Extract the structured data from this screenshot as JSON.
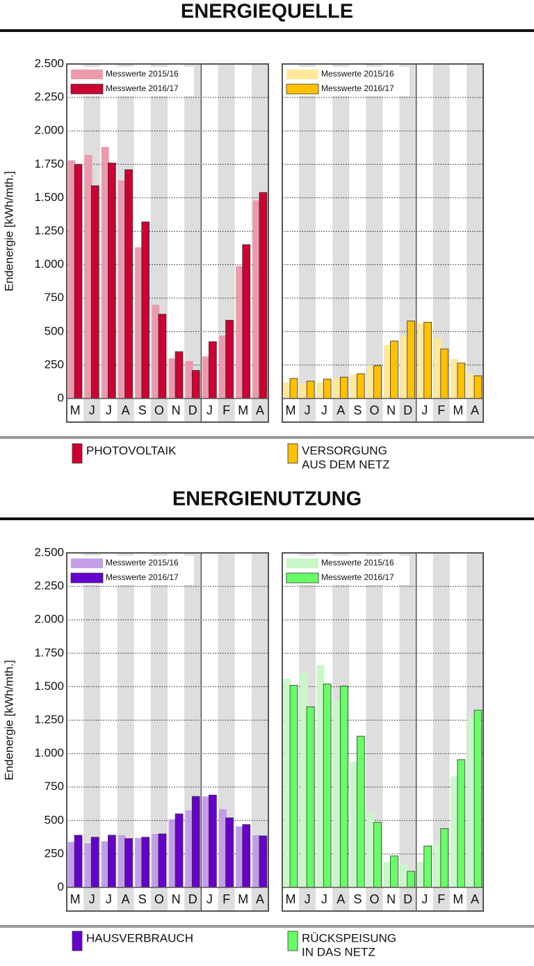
{
  "headings": [
    "ENERGIEQUELLE",
    "ENERGIENUTZUNG"
  ],
  "chart_data": [
    {
      "type": "bar",
      "ylabel": "Endenergie [kWh/mth.]",
      "caption": [
        "PHOTOVOLTAIK"
      ],
      "categories": [
        "M",
        "J",
        "J",
        "A",
        "S",
        "O",
        "N",
        "D",
        "J",
        "F",
        "M",
        "A"
      ],
      "series": [
        {
          "name": "Messwerte 2015/16",
          "color": "#eb9aac",
          "values": [
            1780,
            1820,
            1880,
            1630,
            1130,
            700,
            300,
            280,
            315,
            470,
            990,
            1480
          ]
        },
        {
          "name": "Messwerte 2016/17",
          "color": "#cc0033",
          "values": [
            1750,
            1590,
            1760,
            1710,
            1320,
            630,
            350,
            210,
            425,
            585,
            1150,
            1540
          ]
        }
      ],
      "ylim": [
        0,
        2500
      ],
      "yticks": [
        0,
        250,
        500,
        750,
        {
          "value": 1000,
          "label": "1.000"
        },
        {
          "value": 1250,
          "label": "1.250"
        },
        {
          "value": 1500,
          "label": "1.500"
        },
        {
          "value": 1750,
          "label": "1.750"
        },
        {
          "value": 2000,
          "label": "2.000"
        },
        {
          "value": 2250,
          "label": "2.250"
        },
        {
          "value": 2500,
          "label": "2.500"
        }
      ],
      "grid": true
    },
    {
      "type": "bar",
      "caption": [
        "VERSORGUNG",
        "AUS DEM NETZ"
      ],
      "categories": [
        "M",
        "J",
        "J",
        "A",
        "S",
        "O",
        "N",
        "D",
        "J",
        "F",
        "M",
        "A"
      ],
      "series": [
        {
          "name": "Messwerte 2015/16",
          "color": "#ffe89a",
          "values": [
            120,
            110,
            120,
            150,
            180,
            250,
            400,
            470,
            560,
            450,
            295,
            180
          ]
        },
        {
          "name": "Messwerte 2016/17",
          "color": "#ffc000",
          "values": [
            150,
            130,
            145,
            160,
            185,
            245,
            430,
            580,
            570,
            370,
            265,
            170
          ]
        }
      ],
      "ylim": [
        0,
        2500
      ],
      "yticks": [
        0,
        250,
        500,
        750,
        1000,
        1250,
        1500,
        1750,
        2000,
        2250,
        2500
      ],
      "grid": true
    },
    {
      "type": "bar",
      "ylabel": "Endenergie [kWh/mth.]",
      "caption": [
        "HAUSVERBRAUCH"
      ],
      "categories": [
        "M",
        "J",
        "J",
        "A",
        "S",
        "O",
        "N",
        "D",
        "J",
        "F",
        "M",
        "A"
      ],
      "series": [
        {
          "name": "Messwerte 2015/16",
          "color": "#c39ee8",
          "values": [
            340,
            330,
            345,
            390,
            370,
            400,
            510,
            575,
            680,
            585,
            455,
            390
          ]
        },
        {
          "name": "Messwerte 2016/17",
          "color": "#6600cc",
          "values": [
            390,
            375,
            390,
            365,
            375,
            400,
            550,
            680,
            690,
            520,
            470,
            385
          ]
        }
      ],
      "ylim": [
        0,
        2500
      ],
      "yticks": [
        0,
        250,
        500,
        750,
        {
          "value": 1000,
          "label": "1.000"
        },
        {
          "value": 1250,
          "label": "1.250"
        },
        {
          "value": 1500,
          "label": "1.500"
        },
        {
          "value": 1750,
          "label": "1.750"
        },
        {
          "value": 2000,
          "label": "2.000"
        },
        {
          "value": 2250,
          "label": "2.250"
        },
        {
          "value": 2500,
          "label": "2.500"
        }
      ],
      "grid": true
    },
    {
      "type": "bar",
      "caption": [
        "RÜCKSPEISUNG",
        "IN DAS NETZ"
      ],
      "categories": [
        "M",
        "J",
        "J",
        "A",
        "S",
        "O",
        "N",
        "D",
        "J",
        "F",
        "M",
        "A"
      ],
      "series": [
        {
          "name": "Messwerte 2015/16",
          "color": "#c8f8c8",
          "values": [
            1560,
            1600,
            1660,
            1400,
            940,
            560,
            190,
            175,
            190,
            330,
            830,
            1270
          ]
        },
        {
          "name": "Messwerte 2016/17",
          "color": "#66ff66",
          "values": [
            1510,
            1350,
            1520,
            1505,
            1130,
            485,
            235,
            120,
            310,
            440,
            955,
            1325
          ]
        }
      ],
      "ylim": [
        0,
        2500
      ],
      "yticks": [
        0,
        250,
        500,
        750,
        1000,
        1250,
        1500,
        1750,
        2000,
        2250,
        2500
      ],
      "grid": true
    }
  ]
}
